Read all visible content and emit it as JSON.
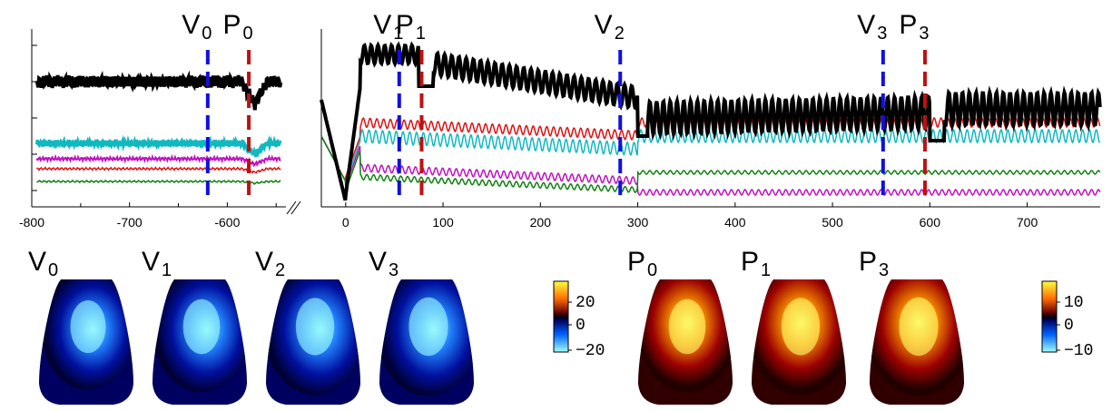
{
  "chart_data": {
    "type": "line",
    "title": "",
    "xlabel": "",
    "ylabel": "",
    "xlim_left": [
      -800,
      -540
    ],
    "xlim_right": [
      -25,
      775
    ],
    "ticks_left": [
      "-800",
      "-700",
      "-600"
    ],
    "ticks_right": [
      "0",
      "100",
      "200",
      "300",
      "400",
      "500",
      "600",
      "700"
    ],
    "tick_values_left": [
      -800,
      -700,
      -600
    ],
    "tick_values_right": [
      0,
      100,
      200,
      300,
      400,
      500,
      600,
      700
    ],
    "grid": false,
    "markers": [
      {
        "label": "V",
        "sub": "0",
        "x": -620,
        "color": "#1010e0"
      },
      {
        "label": "P",
        "sub": "0",
        "x": -578,
        "color": "#c01010"
      },
      {
        "label": "V",
        "sub": "1",
        "x": 55,
        "color": "#1010e0"
      },
      {
        "label": "P",
        "sub": "1",
        "x": 78,
        "color": "#c01010"
      },
      {
        "label": "V",
        "sub": "2",
        "x": 282,
        "color": "#1010e0"
      },
      {
        "label": "V",
        "sub": "3",
        "x": 552,
        "color": "#1010e0"
      },
      {
        "label": "P",
        "sub": "3",
        "x": 595,
        "color": "#c01010"
      }
    ],
    "series_colors": [
      "#000000",
      "#e01010",
      "#10b8c0",
      "#c010c0",
      "#108010"
    ],
    "maps": [
      {
        "label": "V",
        "sub": "0",
        "polarity": "negative",
        "intensity": 0.75
      },
      {
        "label": "V",
        "sub": "1",
        "polarity": "negative",
        "intensity": 0.85
      },
      {
        "label": "V",
        "sub": "2",
        "polarity": "negative",
        "intensity": 0.95
      },
      {
        "label": "V",
        "sub": "3",
        "polarity": "negative",
        "intensity": 1.0
      },
      {
        "label": "P",
        "sub": "0",
        "polarity": "positive",
        "intensity": 0.85
      },
      {
        "label": "P",
        "sub": "1",
        "polarity": "positive",
        "intensity": 0.95
      },
      {
        "label": "P",
        "sub": "3",
        "polarity": "positive",
        "intensity": 1.0
      }
    ],
    "colorbars": [
      {
        "ticks": [
          "20",
          "0",
          "−20"
        ],
        "range": [
          -30,
          30
        ]
      },
      {
        "ticks": [
          "10",
          "0",
          "−10"
        ],
        "range": [
          -15,
          15
        ]
      }
    ]
  }
}
